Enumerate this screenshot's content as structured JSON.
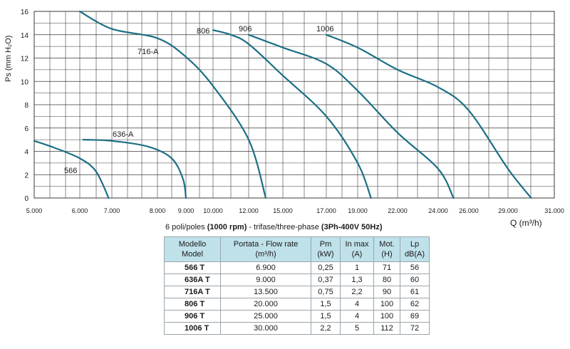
{
  "chart_data": {
    "type": "line",
    "ylabel": "Ps (mm H₂O)",
    "xlabel": "Q (m³/h)",
    "y_ticks": [
      "0",
      "2",
      "4",
      "6",
      "8",
      "10",
      "12",
      "14",
      "16"
    ],
    "x_ticks": [
      "5.000",
      "6.000",
      "7.000",
      "8.000",
      "9.000",
      "10.000",
      "12.000",
      "15.000",
      "17.000",
      "19.000",
      "22.000",
      "24.000",
      "26.000",
      "29.000",
      "31.000"
    ],
    "grid": true,
    "series": [
      {
        "name": "566",
        "points": [
          [
            5000,
            4.9
          ],
          [
            5450,
            4.3
          ],
          [
            6000,
            3.4
          ],
          [
            6500,
            2.3
          ],
          [
            6900,
            0
          ]
        ]
      },
      {
        "name": "636-A",
        "points": [
          [
            6100,
            5.0
          ],
          [
            7000,
            4.9
          ],
          [
            7800,
            4.4
          ],
          [
            8500,
            3.4
          ],
          [
            8900,
            1.6
          ],
          [
            9000,
            0
          ]
        ]
      },
      {
        "name": "716-A",
        "points": [
          [
            6000,
            16.0
          ],
          [
            7000,
            14.5
          ],
          [
            8000,
            13.7
          ],
          [
            9000,
            12.1
          ],
          [
            10000,
            9.6
          ],
          [
            12000,
            5.0
          ],
          [
            13500,
            0
          ]
        ]
      },
      {
        "name": "806",
        "points": [
          [
            10000,
            14.4
          ],
          [
            11000,
            14.0
          ],
          [
            12000,
            13.2
          ],
          [
            15000,
            10.5
          ],
          [
            17000,
            7.0
          ],
          [
            19000,
            3.0
          ],
          [
            20000,
            0
          ]
        ]
      },
      {
        "name": "906",
        "points": [
          [
            12000,
            14.0
          ],
          [
            15000,
            12.9
          ],
          [
            17000,
            11.5
          ],
          [
            19000,
            9.2
          ],
          [
            22000,
            5.6
          ],
          [
            24000,
            2.5
          ],
          [
            25000,
            0
          ]
        ]
      },
      {
        "name": "1006",
        "points": [
          [
            17000,
            14.0
          ],
          [
            19000,
            12.9
          ],
          [
            22000,
            11.0
          ],
          [
            24000,
            9.5
          ],
          [
            26000,
            7.5
          ],
          [
            29000,
            2.5
          ],
          [
            30000,
            0
          ]
        ]
      }
    ],
    "series_colors": [
      "#1c6f84"
    ],
    "grid_color": "#3a3a3a"
  },
  "table": {
    "caption_pre": "6 poli/poles ",
    "caption_bold1": "(1000 rpm)",
    "caption_mid": " - trifase/three-phase ",
    "caption_bold2": "(3Ph-400V 50Hz)",
    "headers": [
      {
        "l1": "Modello",
        "l2": "Model"
      },
      {
        "l1": "Portata - Flow rate",
        "l2": "(m³/h)"
      },
      {
        "l1": "Pm",
        "l2": "(kW)"
      },
      {
        "l1": "In max",
        "l2": "(A)"
      },
      {
        "l1": "Mot.",
        "l2": "(H)"
      },
      {
        "l1": "Lp",
        "l2": "dB(A)"
      }
    ],
    "rows": [
      [
        "566 T",
        "6.900",
        "0,25",
        "1",
        "71",
        "56"
      ],
      [
        "636A T",
        "9.000",
        "0,37",
        "1,3",
        "80",
        "60"
      ],
      [
        "716A T",
        "13.500",
        "0,75",
        "2,2",
        "90",
        "61"
      ],
      [
        "806 T",
        "20.000",
        "1,5",
        "4",
        "100",
        "62"
      ],
      [
        "906 T",
        "25.000",
        "1,5",
        "4",
        "100",
        "69"
      ],
      [
        "1006 T",
        "30.000",
        "2,2",
        "5",
        "112",
        "72"
      ]
    ]
  }
}
